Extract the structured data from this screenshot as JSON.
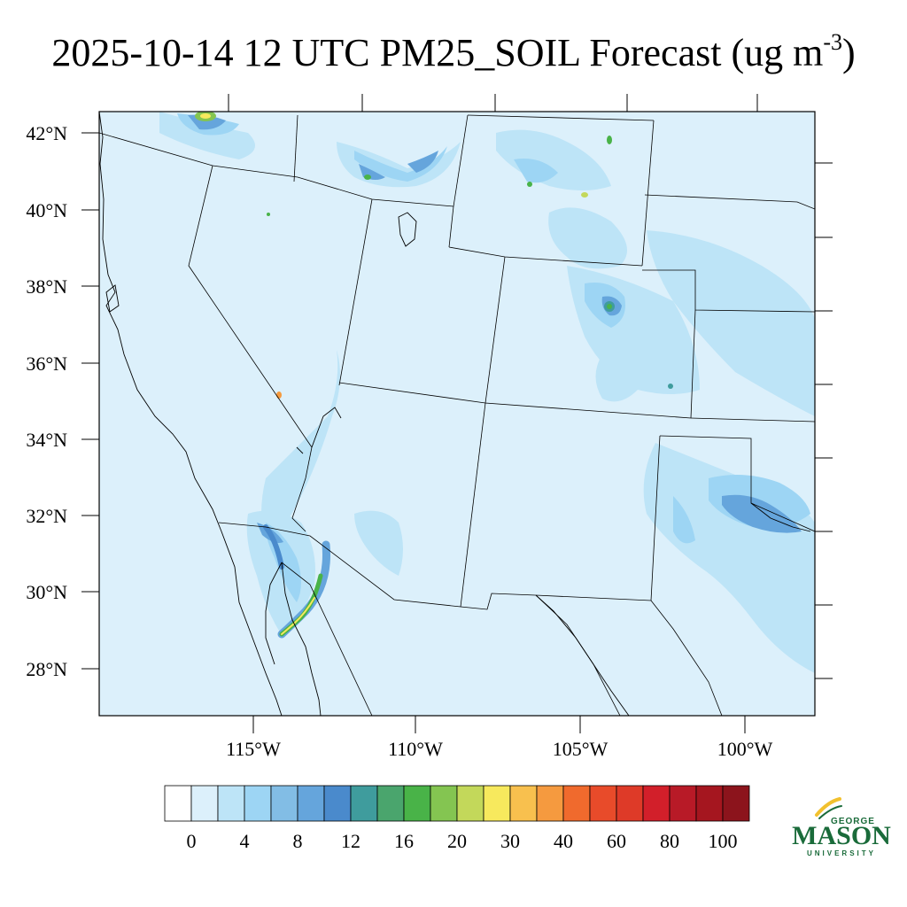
{
  "title": {
    "main": "2025-10-14 12 UTC PM25_SOIL Forecast (ug m",
    "sup": "-3",
    "close": ")"
  },
  "map": {
    "lat_labels": [
      "42°N",
      "40°N",
      "38°N",
      "36°N",
      "34°N",
      "32°N",
      "30°N",
      "28°N"
    ],
    "lon_labels": [
      "115°W",
      "110°W",
      "105°W",
      "100°W"
    ],
    "background_color": "#dcf0fb",
    "boundary_color": "#000000"
  },
  "colorbar": {
    "colors": [
      "#ffffff",
      "#dcf0fb",
      "#bde4f7",
      "#9dd5f4",
      "#82bde5",
      "#65a5dc",
      "#4a8acc",
      "#3f9c9d",
      "#4aa56d",
      "#49b348",
      "#84c551",
      "#c3d85a",
      "#f7e95d",
      "#f8c04e",
      "#f59a3f",
      "#f06a2d",
      "#e84b2a",
      "#de3a28",
      "#d21f2a",
      "#b81a27",
      "#a5161f",
      "#8c141c"
    ],
    "labels": [
      "0",
      "4",
      "8",
      "12",
      "16",
      "20",
      "30",
      "40",
      "60",
      "80",
      "100"
    ]
  },
  "logo": {
    "top": "GEORGE",
    "main": "MASON",
    "bottom": "UNIVERSITY",
    "green": "#1a6b3a",
    "gold": "#f2c12e"
  }
}
